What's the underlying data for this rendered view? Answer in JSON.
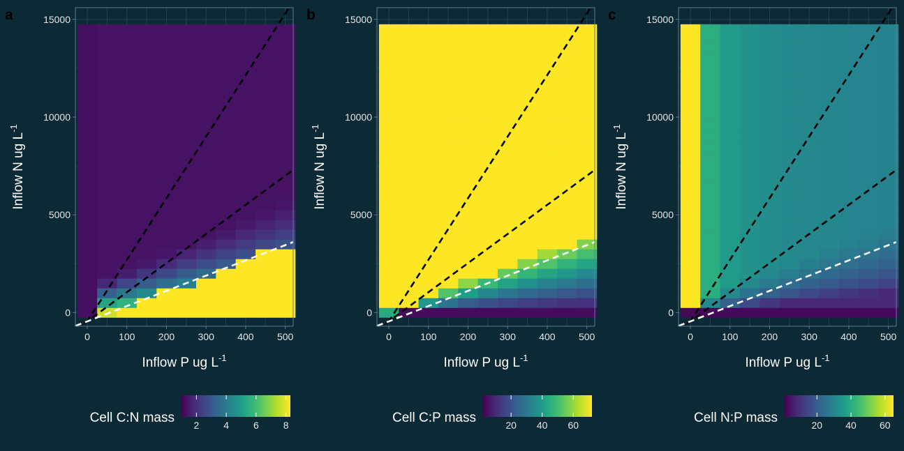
{
  "chart_data": [
    {
      "type": "heatmap",
      "panel_label": "a",
      "xlabel": "Inflow P ug L",
      "xlabel_sup": "-1",
      "ylabel": "Inflow N ug L",
      "ylabel_sup": "-1",
      "x_ticks": [
        0,
        100,
        200,
        300,
        400,
        500
      ],
      "y_ticks": [
        0,
        5000,
        10000,
        15000
      ],
      "xlim": [
        -30,
        520
      ],
      "ylim": [
        -700,
        15600
      ],
      "grid": true,
      "legend": {
        "title": "Cell C:N mass",
        "placement": "bottom",
        "ticks": [
          2,
          4,
          6,
          8
        ],
        "range": [
          1,
          8.3
        ]
      },
      "metric": "cn",
      "lines": [
        {
          "color": "#000000",
          "style": "dashed",
          "slope": 31.5,
          "intercept": -450
        },
        {
          "color": "#000000",
          "style": "dashed",
          "slope": 14.9,
          "intercept": -450
        },
        {
          "color": "#ffffff",
          "style": "dashed",
          "slope": 7.8,
          "intercept": -450
        }
      ]
    },
    {
      "type": "heatmap",
      "panel_label": "b",
      "xlabel": "Inflow P ug L",
      "xlabel_sup": "-1",
      "ylabel": "Inflow N ug L",
      "ylabel_sup": "-1",
      "x_ticks": [
        0,
        100,
        200,
        300,
        400,
        500
      ],
      "y_ticks": [
        0,
        5000,
        10000,
        15000
      ],
      "xlim": [
        -30,
        520
      ],
      "ylim": [
        -700,
        15600
      ],
      "grid": true,
      "legend": {
        "title": "Cell C:P mass",
        "placement": "bottom",
        "ticks": [
          20,
          40,
          60
        ],
        "range": [
          2,
          72
        ]
      },
      "metric": "cp",
      "lines": [
        {
          "color": "#000000",
          "style": "dashed",
          "slope": 31.5,
          "intercept": -450
        },
        {
          "color": "#000000",
          "style": "dashed",
          "slope": 14.9,
          "intercept": -450
        },
        {
          "color": "#ffffff",
          "style": "dashed",
          "slope": 7.8,
          "intercept": -450
        }
      ]
    },
    {
      "type": "heatmap",
      "panel_label": "c",
      "xlabel": "Inflow P ug L",
      "xlabel_sup": "-1",
      "ylabel": "Inflow N ug L",
      "ylabel_sup": "-1",
      "x_ticks": [
        0,
        100,
        200,
        300,
        400,
        500
      ],
      "y_ticks": [
        0,
        5000,
        10000,
        15000
      ],
      "xlim": [
        -30,
        520
      ],
      "ylim": [
        -700,
        15600
      ],
      "grid": true,
      "legend": {
        "title": "Cell N:P mass",
        "placement": "bottom",
        "ticks": [
          20,
          40,
          60
        ],
        "range": [
          1,
          65
        ]
      },
      "metric": "np",
      "lines": [
        {
          "color": "#000000",
          "style": "dashed",
          "slope": 31.5,
          "intercept": -450
        },
        {
          "color": "#000000",
          "style": "dashed",
          "slope": 14.9,
          "intercept": -450
        },
        {
          "color": "#ffffff",
          "style": "dashed",
          "slope": 7.8,
          "intercept": -450
        }
      ]
    }
  ],
  "grid_cells": {
    "p_values": [
      0,
      50,
      100,
      150,
      200,
      250,
      300,
      350,
      400,
      450,
      500
    ],
    "n_values": [
      0,
      500,
      1000,
      1500,
      2000,
      2500,
      3000,
      3500,
      4000,
      4500,
      5000,
      5500,
      6000,
      6500,
      7000,
      7500,
      8000,
      8500,
      9000,
      9500,
      10000,
      10500,
      11000,
      11500,
      12000,
      12500,
      13000,
      13500,
      14000,
      14500
    ]
  },
  "colors": {
    "background": "#0b2a36",
    "grid": "#1f4352",
    "panel_border": "#5c7f8c",
    "viridis": [
      "#440154",
      "#482878",
      "#3e4989",
      "#31688e",
      "#26828e",
      "#1f9e89",
      "#35b779",
      "#6ece58",
      "#b5de2b",
      "#fde725"
    ]
  }
}
